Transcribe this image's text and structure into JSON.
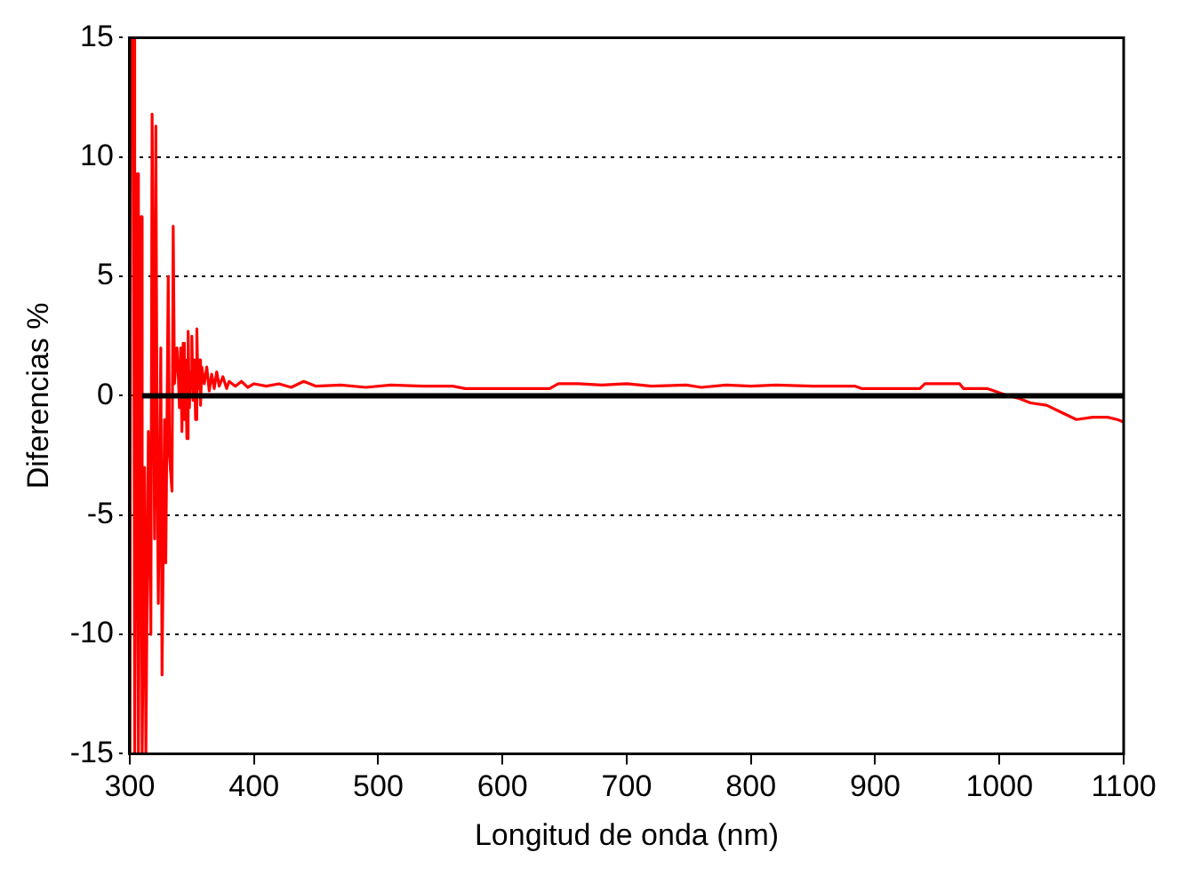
{
  "chart_data": {
    "type": "line",
    "xlabel": "Longitud de onda (nm)",
    "ylabel": "Diferencias %",
    "xlim": [
      300,
      1100
    ],
    "ylim": [
      -15,
      15
    ],
    "xticks": [
      300,
      400,
      500,
      600,
      700,
      800,
      900,
      1000,
      1100
    ],
    "yticks": [
      -15,
      -10,
      -5,
      0,
      5,
      10,
      15
    ],
    "grid": "y",
    "series": [
      {
        "color": "#ff0000",
        "x": [
          300,
          301,
          303,
          304,
          306,
          307,
          309,
          310,
          312,
          313,
          315,
          317,
          318,
          320,
          321,
          322,
          323,
          325,
          326,
          328,
          329,
          331,
          332,
          334,
          335,
          336,
          338,
          339,
          340,
          341,
          342,
          343,
          344,
          345,
          346,
          347,
          348,
          349,
          350,
          351,
          352,
          353,
          354,
          355,
          356,
          357,
          358,
          360,
          362,
          364,
          366,
          368,
          370,
          372,
          375,
          378,
          380,
          385,
          390,
          395,
          400,
          410,
          420,
          430,
          440,
          450,
          470,
          490,
          510,
          536,
          560,
          570,
          600,
          638,
          645,
          661,
          680,
          700,
          720,
          748,
          760,
          780,
          800,
          820,
          850,
          884,
          889,
          910,
          936,
          940,
          968,
          971,
          990,
          1004,
          1015,
          1025,
          1038,
          1050,
          1062,
          1075,
          1087,
          1095,
          1100
        ],
        "values": [
          -15,
          15,
          15,
          -15,
          9.3,
          -15,
          7.5,
          -15,
          -3,
          -15,
          -1.5,
          -10,
          11.8,
          -6,
          11.3,
          -2,
          -8.7,
          2,
          -11.7,
          -1,
          -7,
          5,
          -2.5,
          -4,
          7.1,
          0.5,
          2,
          1,
          -0.5,
          2,
          -1.5,
          2.2,
          -1,
          1.5,
          -1.8,
          2.7,
          -0.5,
          1,
          2.5,
          -0.2,
          1.5,
          -1,
          2.8,
          0.3,
          1.5,
          -0.4,
          1.2,
          0.5,
          1.2,
          0.2,
          0.9,
          0.3,
          1,
          0.4,
          0.8,
          0.3,
          0.6,
          0.4,
          0.6,
          0.35,
          0.5,
          0.4,
          0.5,
          0.35,
          0.6,
          0.4,
          0.45,
          0.35,
          0.45,
          0.4,
          0.4,
          0.3,
          0.3,
          0.3,
          0.5,
          0.5,
          0.45,
          0.5,
          0.4,
          0.45,
          0.35,
          0.45,
          0.4,
          0.45,
          0.4,
          0.4,
          0.3,
          0.3,
          0.3,
          0.5,
          0.5,
          0.3,
          0.3,
          0.05,
          -0.1,
          -0.3,
          -0.4,
          -0.7,
          -1,
          -0.9,
          -0.9,
          -1,
          -1.1
        ]
      },
      {
        "color": "#000000",
        "x": [
          310,
          1100
        ],
        "values": [
          0,
          0
        ]
      }
    ]
  }
}
